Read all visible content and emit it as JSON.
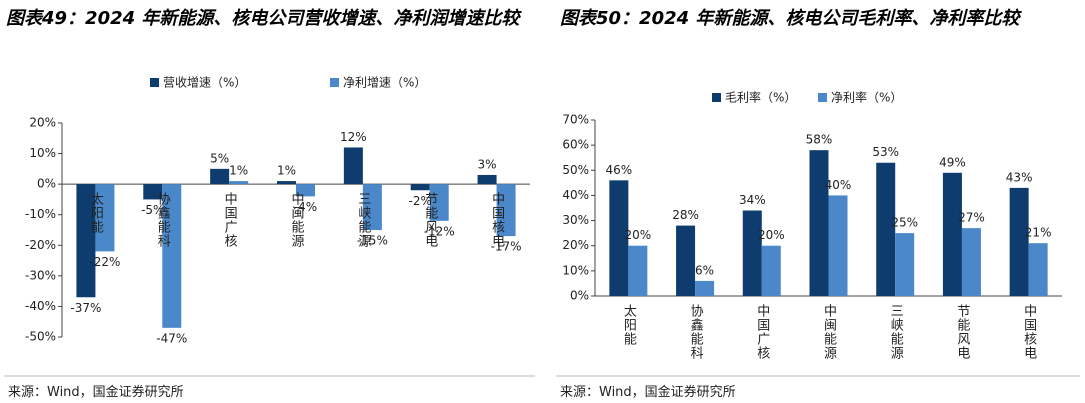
{
  "chart_data": [
    {
      "type": "bar",
      "title": "图表49：2024 年新能源、核电公司营收增速、净利润增速比较",
      "categories": [
        "太阳能",
        "协鑫能科",
        "中国广核",
        "中闽能源",
        "三峡能源",
        "节能风电",
        "中国核电"
      ],
      "series": [
        {
          "name": "营收增速（%）",
          "color": "#0e3c6e",
          "values": [
            -37,
            -5,
            5,
            1,
            12,
            -2,
            3
          ],
          "value_labels": [
            "-37%",
            "-5%",
            "5%",
            "1%",
            "12%",
            "-2%",
            "3%"
          ]
        },
        {
          "name": "净利增速（%）",
          "color": "#4a88c9",
          "values": [
            -22,
            -47,
            1,
            -4,
            -15,
            -12,
            -17
          ],
          "value_labels": [
            "-22%",
            "-47%",
            "1%",
            "-4%",
            "-15%",
            "-12%",
            "-17%"
          ]
        }
      ],
      "ylim": [
        -50,
        20
      ],
      "yticks": [
        {
          "value": -50,
          "label": "-50%"
        },
        {
          "value": -40,
          "label": "-40%"
        },
        {
          "value": -30,
          "label": "-30%"
        },
        {
          "value": -20,
          "label": "-20%"
        },
        {
          "value": -10,
          "label": "-10%"
        },
        {
          "value": 0,
          "label": "0%"
        },
        {
          "value": 10,
          "label": "10%"
        },
        {
          "value": 20,
          "label": "20%"
        }
      ],
      "source": "来源：Wind，国金证券研究所"
    },
    {
      "type": "bar",
      "title": "图表50：2024 年新能源、核电公司毛利率、净利率比较",
      "categories": [
        "太阳能",
        "协鑫能科",
        "中国广核",
        "中闽能源",
        "三峡能源",
        "节能风电",
        "中国核电"
      ],
      "series": [
        {
          "name": "毛利率（%）",
          "color": "#0e3c6e",
          "values": [
            46,
            28,
            34,
            58,
            53,
            49,
            43
          ],
          "value_labels": [
            "46%",
            "28%",
            "34%",
            "58%",
            "53%",
            "49%",
            "43%"
          ]
        },
        {
          "name": "净利率（%）",
          "color": "#4a88c9",
          "values": [
            20,
            6,
            20,
            40,
            25,
            27,
            21
          ],
          "value_labels": [
            "20%",
            "6%",
            "20%",
            "40%",
            "25%",
            "27%",
            "21%"
          ]
        }
      ],
      "ylim": [
        0,
        70
      ],
      "yticks": [
        {
          "value": 0,
          "label": "0%"
        },
        {
          "value": 10,
          "label": "10%"
        },
        {
          "value": 20,
          "label": "20%"
        },
        {
          "value": 30,
          "label": "30%"
        },
        {
          "value": 40,
          "label": "40%"
        },
        {
          "value": 50,
          "label": "50%"
        },
        {
          "value": 60,
          "label": "60%"
        },
        {
          "value": 70,
          "label": "70%"
        }
      ],
      "source": "来源：Wind，国金证券研究所"
    }
  ]
}
